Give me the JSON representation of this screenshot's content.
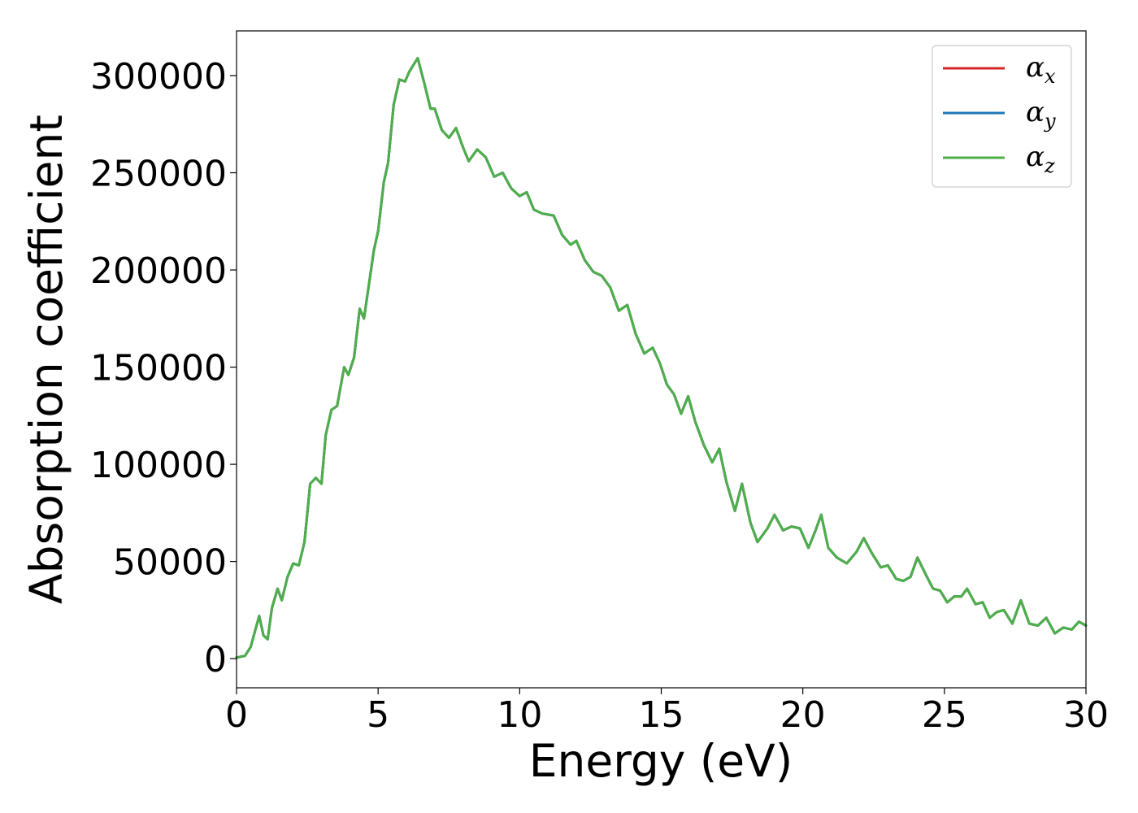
{
  "chart_data": {
    "type": "line",
    "xlabel": "Energy (eV)",
    "ylabel": "Absorption coefficient",
    "xlim": [
      0,
      30
    ],
    "ylim": [
      -15000,
      323000
    ],
    "xticks": [
      0,
      5,
      10,
      15,
      20,
      25,
      30
    ],
    "xtick_labels": [
      "0",
      "5",
      "10",
      "15",
      "20",
      "25",
      "30"
    ],
    "yticks": [
      0,
      50000,
      100000,
      150000,
      200000,
      250000,
      300000
    ],
    "ytick_labels": [
      "0",
      "50000",
      "100000",
      "150000",
      "200000",
      "250000",
      "300000"
    ],
    "grid": false,
    "legend_position": "top-right",
    "x": [
      0,
      0.3,
      0.5,
      0.65,
      0.8,
      0.95,
      1.1,
      1.25,
      1.45,
      1.6,
      1.8,
      2.0,
      2.2,
      2.4,
      2.6,
      2.8,
      3.0,
      3.15,
      3.35,
      3.55,
      3.8,
      3.95,
      4.15,
      4.35,
      4.5,
      4.65,
      4.85,
      5.0,
      5.2,
      5.35,
      5.55,
      5.75,
      5.95,
      6.1,
      6.4,
      6.65,
      6.85,
      7.0,
      7.25,
      7.5,
      7.75,
      8.0,
      8.2,
      8.5,
      8.8,
      9.1,
      9.4,
      9.7,
      10.0,
      10.25,
      10.5,
      10.8,
      11.2,
      11.5,
      11.8,
      12.0,
      12.3,
      12.6,
      12.9,
      13.2,
      13.5,
      13.8,
      14.1,
      14.4,
      14.7,
      14.95,
      15.2,
      15.45,
      15.7,
      15.95,
      16.2,
      16.5,
      16.8,
      17.05,
      17.3,
      17.6,
      17.85,
      18.15,
      18.4,
      18.75,
      19.0,
      19.3,
      19.6,
      19.9,
      20.2,
      20.45,
      20.65,
      20.9,
      21.2,
      21.55,
      21.9,
      22.15,
      22.45,
      22.75,
      23.0,
      23.3,
      23.55,
      23.8,
      24.05,
      24.35,
      24.6,
      24.85,
      25.1,
      25.35,
      25.6,
      25.8,
      26.1,
      26.35,
      26.6,
      26.85,
      27.1,
      27.4,
      27.7,
      28.0,
      28.3,
      28.6,
      28.9,
      29.2,
      29.5,
      29.75,
      30.0
    ],
    "series": [
      {
        "name": "α_x",
        "color": "#d62728",
        "values": [
          500,
          1500,
          6000,
          14000,
          22000,
          12000,
          10000,
          26000,
          36000,
          30000,
          42000,
          49000,
          48000,
          60000,
          90000,
          93000,
          90000,
          115000,
          128000,
          130000,
          150000,
          146000,
          155000,
          180000,
          175000,
          190000,
          210000,
          220000,
          245000,
          255000,
          285000,
          298000,
          297000,
          302000,
          309000,
          295000,
          283000,
          283000,
          272000,
          268000,
          273000,
          263000,
          256000,
          262000,
          258000,
          248000,
          250000,
          242000,
          238000,
          240000,
          231000,
          229000,
          228000,
          218000,
          213000,
          215000,
          205000,
          199000,
          197000,
          191000,
          179000,
          182000,
          167000,
          157000,
          160000,
          152000,
          141000,
          136000,
          126000,
          135000,
          122000,
          110000,
          101000,
          108000,
          91000,
          76000,
          90000,
          70000,
          60000,
          67000,
          74000,
          66000,
          68000,
          67000,
          57000,
          66000,
          74000,
          57000,
          52000,
          49000,
          55000,
          62000,
          54000,
          47000,
          48000,
          41000,
          40000,
          42000,
          52000,
          43000,
          36000,
          35000,
          29000,
          32000,
          32000,
          36000,
          28000,
          29000,
          21000,
          24000,
          25000,
          18000,
          30000,
          18000,
          17000,
          21000,
          13000,
          16000,
          15000,
          19000,
          17000
        ]
      },
      {
        "name": "α_y",
        "color": "#1f77b4",
        "values": [
          500,
          1500,
          6000,
          14000,
          22000,
          12000,
          10000,
          26000,
          36000,
          30000,
          42000,
          49000,
          48000,
          60000,
          90000,
          93000,
          90000,
          115000,
          128000,
          130000,
          150000,
          146000,
          155000,
          180000,
          175000,
          190000,
          210000,
          220000,
          245000,
          255000,
          285000,
          298000,
          297000,
          302000,
          309000,
          295000,
          283000,
          283000,
          272000,
          268000,
          273000,
          263000,
          256000,
          262000,
          258000,
          248000,
          250000,
          242000,
          238000,
          240000,
          231000,
          229000,
          228000,
          218000,
          213000,
          215000,
          205000,
          199000,
          197000,
          191000,
          179000,
          182000,
          167000,
          157000,
          160000,
          152000,
          141000,
          136000,
          126000,
          135000,
          122000,
          110000,
          101000,
          108000,
          91000,
          76000,
          90000,
          70000,
          60000,
          67000,
          74000,
          66000,
          68000,
          67000,
          57000,
          66000,
          74000,
          57000,
          52000,
          49000,
          55000,
          62000,
          54000,
          47000,
          48000,
          41000,
          40000,
          42000,
          52000,
          43000,
          36000,
          35000,
          29000,
          32000,
          32000,
          36000,
          28000,
          29000,
          21000,
          24000,
          25000,
          18000,
          30000,
          18000,
          17000,
          21000,
          13000,
          16000,
          15000,
          19000,
          17000
        ]
      },
      {
        "name": "α_z",
        "color": "#4daf4a",
        "values": [
          500,
          1500,
          6000,
          14000,
          22000,
          12000,
          10000,
          26000,
          36000,
          30000,
          42000,
          49000,
          48000,
          60000,
          90000,
          93000,
          90000,
          115000,
          128000,
          130000,
          150000,
          146000,
          155000,
          180000,
          175000,
          190000,
          210000,
          220000,
          245000,
          255000,
          285000,
          298000,
          297000,
          302000,
          309000,
          295000,
          283000,
          283000,
          272000,
          268000,
          273000,
          263000,
          256000,
          262000,
          258000,
          248000,
          250000,
          242000,
          238000,
          240000,
          231000,
          229000,
          228000,
          218000,
          213000,
          215000,
          205000,
          199000,
          197000,
          191000,
          179000,
          182000,
          167000,
          157000,
          160000,
          152000,
          141000,
          136000,
          126000,
          135000,
          122000,
          110000,
          101000,
          108000,
          91000,
          76000,
          90000,
          70000,
          60000,
          67000,
          74000,
          66000,
          68000,
          67000,
          57000,
          66000,
          74000,
          57000,
          52000,
          49000,
          55000,
          62000,
          54000,
          47000,
          48000,
          41000,
          40000,
          42000,
          52000,
          43000,
          36000,
          35000,
          29000,
          32000,
          32000,
          36000,
          28000,
          29000,
          21000,
          24000,
          25000,
          18000,
          30000,
          18000,
          17000,
          21000,
          13000,
          16000,
          15000,
          19000,
          17000
        ]
      }
    ],
    "legend": [
      {
        "symbol": "α",
        "subscript": "x"
      },
      {
        "symbol": "α",
        "subscript": "y"
      },
      {
        "symbol": "α",
        "subscript": "z"
      }
    ]
  }
}
